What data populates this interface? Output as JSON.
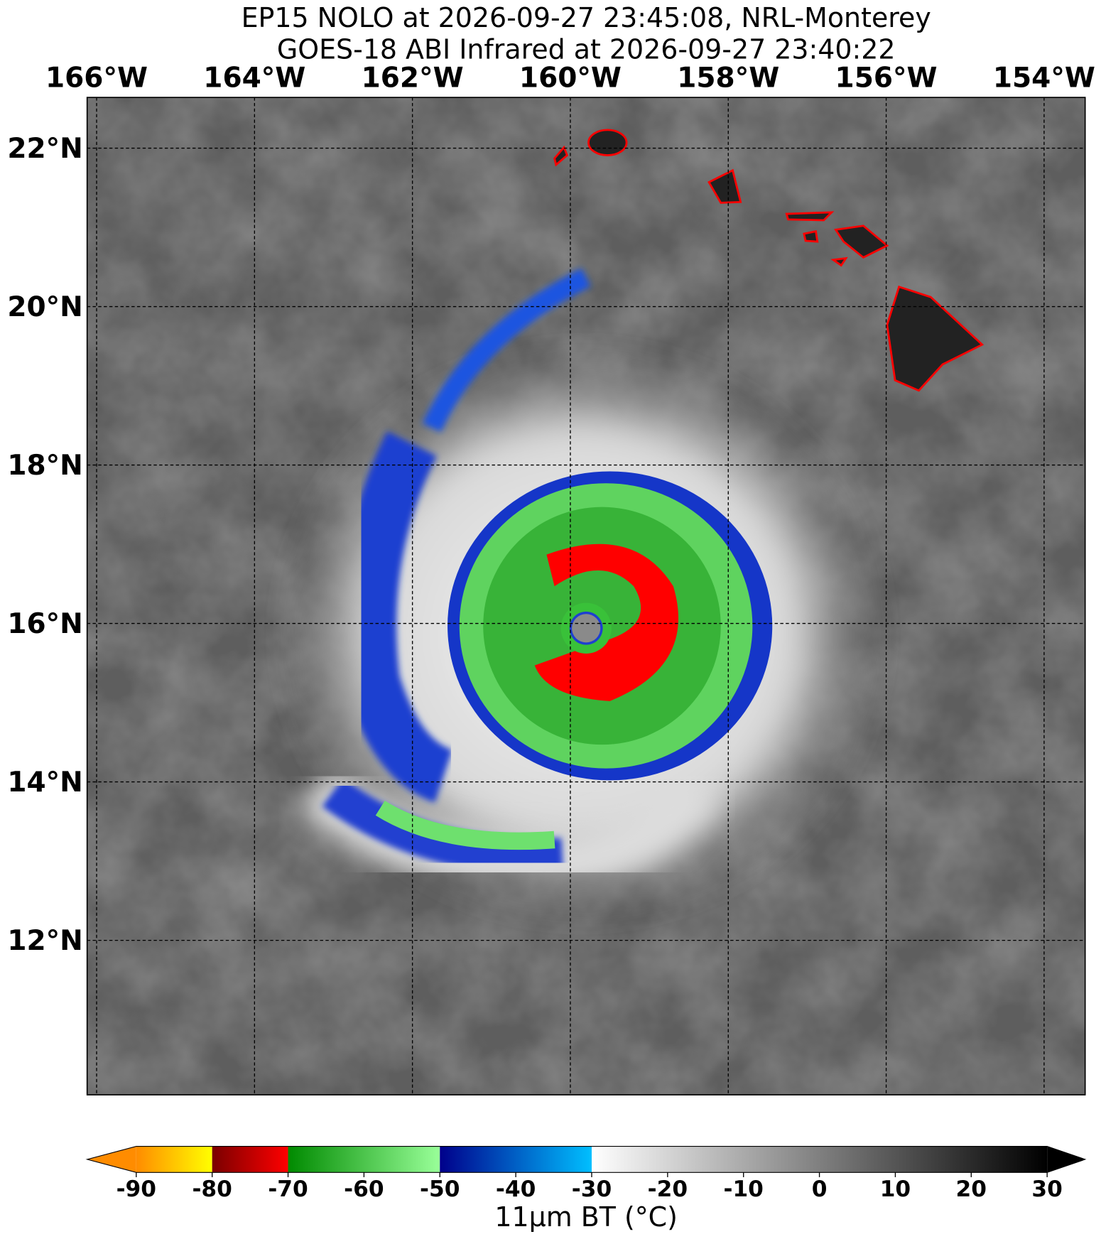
{
  "title": [
    "EP15 NOLO at 2026-09-27 23:45:08, NRL-Monterey",
    "GOES-18 ABI Infrared at 2026-09-27 23:40:22"
  ],
  "map": {
    "xlim": [
      -166.12,
      -153.48
    ],
    "ylim": [
      10.05,
      22.64
    ],
    "xticks": [
      {
        "value": -166,
        "label": "166°W"
      },
      {
        "value": -164,
        "label": "164°W"
      },
      {
        "value": -162,
        "label": "162°W"
      },
      {
        "value": -160,
        "label": "160°W"
      },
      {
        "value": -158,
        "label": "158°W"
      },
      {
        "value": -156,
        "label": "156°W"
      },
      {
        "value": -154,
        "label": "154°W"
      }
    ],
    "yticks": [
      {
        "value": 22,
        "label": "22°N"
      },
      {
        "value": 20,
        "label": "20°N"
      },
      {
        "value": 18,
        "label": "18°N"
      },
      {
        "value": 16,
        "label": "16°N"
      },
      {
        "value": 14,
        "label": "14°N"
      },
      {
        "value": 12,
        "label": "12°N"
      }
    ],
    "grid": true
  },
  "colorbar": {
    "lim": [
      -90,
      30
    ],
    "ticks": [
      -90,
      -80,
      -70,
      -60,
      -50,
      -40,
      -30,
      -20,
      -10,
      0,
      10,
      20,
      30
    ],
    "label": "11μm BT (°C)",
    "segments": [
      {
        "from": -90,
        "to": -80,
        "colors": [
          "#ff8c00",
          "#ffff00"
        ]
      },
      {
        "from": -80,
        "to": -70,
        "colors": [
          "#7a0000",
          "#ff0000"
        ]
      },
      {
        "from": -70,
        "to": -50,
        "colors": [
          "#008a00",
          "#99ff99"
        ]
      },
      {
        "from": -50,
        "to": -30,
        "colors": [
          "#00008b",
          "#00bfff"
        ]
      },
      {
        "from": -30,
        "to": 30,
        "colors": [
          "#ffffff",
          "#000000"
        ]
      }
    ]
  }
}
